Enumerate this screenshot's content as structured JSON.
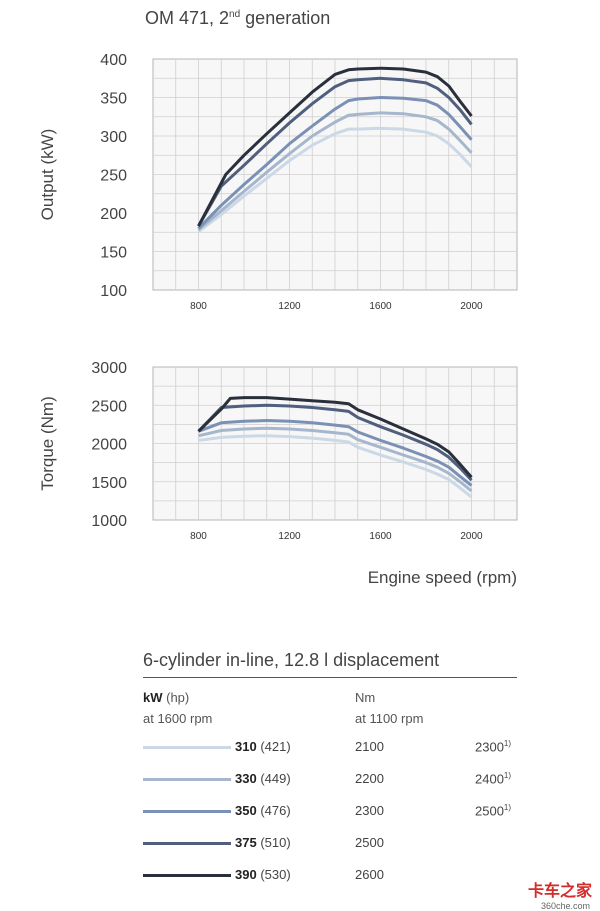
{
  "title": {
    "main": "OM 471, 2",
    "sup": "nd",
    "rest": " generation"
  },
  "chart_data": [
    {
      "type": "line",
      "ylabel": "Output (kW)",
      "ylim": [
        100,
        400
      ],
      "yticks": [
        100,
        150,
        200,
        250,
        300,
        350,
        400
      ],
      "xlim": [
        600,
        2200
      ],
      "xticks": [
        800,
        1200,
        1600,
        2000
      ],
      "grid": true,
      "series": [
        {
          "name": "390 (530)",
          "color": "#2a2f3c",
          "points": [
            [
              800,
              183
            ],
            [
              920,
              250
            ],
            [
              1000,
              275
            ],
            [
              1100,
              303
            ],
            [
              1200,
              330
            ],
            [
              1300,
              357
            ],
            [
              1400,
              380
            ],
            [
              1460,
              386
            ],
            [
              1500,
              387
            ],
            [
              1600,
              388
            ],
            [
              1700,
              387
            ],
            [
              1800,
              383
            ],
            [
              1850,
              377
            ],
            [
              1900,
              365
            ],
            [
              1950,
              345
            ],
            [
              2000,
              326
            ]
          ]
        },
        {
          "name": "375 (510)",
          "color": "#4f5f7d",
          "points": [
            [
              800,
              183
            ],
            [
              900,
              235
            ],
            [
              1000,
              262
            ],
            [
              1100,
              290
            ],
            [
              1200,
              317
            ],
            [
              1300,
              342
            ],
            [
              1400,
              364
            ],
            [
              1460,
              372
            ],
            [
              1500,
              373
            ],
            [
              1600,
              375
            ],
            [
              1700,
              373
            ],
            [
              1800,
              369
            ],
            [
              1850,
              362
            ],
            [
              1900,
              350
            ],
            [
              1950,
              334
            ],
            [
              2000,
              315
            ]
          ]
        },
        {
          "name": "350 (476)",
          "color": "#7a90b5",
          "points": [
            [
              800,
              180
            ],
            [
              900,
              210
            ],
            [
              1000,
              237
            ],
            [
              1100,
              263
            ],
            [
              1200,
              290
            ],
            [
              1300,
              313
            ],
            [
              1400,
              335
            ],
            [
              1460,
              346
            ],
            [
              1500,
              348
            ],
            [
              1600,
              350
            ],
            [
              1700,
              349
            ],
            [
              1800,
              346
            ],
            [
              1850,
              340
            ],
            [
              1900,
              328
            ],
            [
              1950,
              312
            ],
            [
              2000,
              295
            ]
          ]
        },
        {
          "name": "330 (449)",
          "color": "#a6b7cd",
          "points": [
            [
              800,
              178
            ],
            [
              900,
              203
            ],
            [
              1000,
              228
            ],
            [
              1100,
              253
            ],
            [
              1200,
              277
            ],
            [
              1300,
              300
            ],
            [
              1400,
              318
            ],
            [
              1460,
              327
            ],
            [
              1500,
              328
            ],
            [
              1600,
              330
            ],
            [
              1700,
              329
            ],
            [
              1800,
              325
            ],
            [
              1850,
              320
            ],
            [
              1900,
              309
            ],
            [
              1950,
              294
            ],
            [
              2000,
              278
            ]
          ]
        },
        {
          "name": "310 (421)",
          "color": "#cbd8e6",
          "points": [
            [
              800,
              176
            ],
            [
              900,
              198
            ],
            [
              1000,
              222
            ],
            [
              1100,
              245
            ],
            [
              1200,
              268
            ],
            [
              1300,
              288
            ],
            [
              1400,
              303
            ],
            [
              1460,
              309
            ],
            [
              1500,
              309
            ],
            [
              1600,
              310
            ],
            [
              1700,
              309
            ],
            [
              1800,
              305
            ],
            [
              1850,
              300
            ],
            [
              1900,
              290
            ],
            [
              1950,
              276
            ],
            [
              2000,
              260
            ]
          ]
        }
      ]
    },
    {
      "type": "line",
      "ylabel": "Torque (Nm)",
      "xlabel": "Engine speed (rpm)",
      "ylim": [
        1000,
        3000
      ],
      "yticks": [
        1000,
        1500,
        2000,
        2500,
        3000
      ],
      "xlim": [
        600,
        2200
      ],
      "xticks": [
        800,
        1200,
        1600,
        2000
      ],
      "grid": true,
      "series": [
        {
          "name": "390 (530)",
          "color": "#2a2f3c",
          "points": [
            [
              800,
              2160
            ],
            [
              900,
              2450
            ],
            [
              940,
              2590
            ],
            [
              1000,
              2600
            ],
            [
              1100,
              2600
            ],
            [
              1200,
              2580
            ],
            [
              1300,
              2560
            ],
            [
              1400,
              2540
            ],
            [
              1460,
              2520
            ],
            [
              1500,
              2440
            ],
            [
              1600,
              2320
            ],
            [
              1700,
              2190
            ],
            [
              1800,
              2060
            ],
            [
              1850,
              1990
            ],
            [
              1900,
              1890
            ],
            [
              1950,
              1730
            ],
            [
              2000,
              1560
            ]
          ]
        },
        {
          "name": "375 (510)",
          "color": "#4f5f7d",
          "points": [
            [
              800,
              2160
            ],
            [
              900,
              2470
            ],
            [
              1000,
              2490
            ],
            [
              1100,
              2500
            ],
            [
              1200,
              2490
            ],
            [
              1300,
              2470
            ],
            [
              1400,
              2440
            ],
            [
              1460,
              2420
            ],
            [
              1500,
              2340
            ],
            [
              1600,
              2220
            ],
            [
              1700,
              2110
            ],
            [
              1800,
              1990
            ],
            [
              1850,
              1920
            ],
            [
              1900,
              1820
            ],
            [
              1950,
              1680
            ],
            [
              2000,
              1520
            ]
          ]
        },
        {
          "name": "350 (476)",
          "color": "#7a90b5",
          "points": [
            [
              800,
              2160
            ],
            [
              900,
              2270
            ],
            [
              1000,
              2290
            ],
            [
              1100,
              2300
            ],
            [
              1200,
              2290
            ],
            [
              1300,
              2270
            ],
            [
              1400,
              2240
            ],
            [
              1460,
              2220
            ],
            [
              1500,
              2150
            ],
            [
              1600,
              2040
            ],
            [
              1700,
              1940
            ],
            [
              1800,
              1830
            ],
            [
              1850,
              1770
            ],
            [
              1900,
              1690
            ],
            [
              1950,
              1570
            ],
            [
              2000,
              1450
            ]
          ]
        },
        {
          "name": "330 (449)",
          "color": "#a6b7cd",
          "points": [
            [
              800,
              2100
            ],
            [
              900,
              2170
            ],
            [
              1000,
              2190
            ],
            [
              1100,
              2200
            ],
            [
              1200,
              2190
            ],
            [
              1300,
              2170
            ],
            [
              1400,
              2140
            ],
            [
              1460,
              2120
            ],
            [
              1500,
              2050
            ],
            [
              1600,
              1950
            ],
            [
              1700,
              1850
            ],
            [
              1800,
              1750
            ],
            [
              1850,
              1690
            ],
            [
              1900,
              1610
            ],
            [
              1950,
              1500
            ],
            [
              2000,
              1380
            ]
          ]
        },
        {
          "name": "310 (421)",
          "color": "#cbd8e6",
          "points": [
            [
              800,
              2040
            ],
            [
              900,
              2080
            ],
            [
              1000,
              2095
            ],
            [
              1100,
              2100
            ],
            [
              1200,
              2090
            ],
            [
              1300,
              2070
            ],
            [
              1400,
              2040
            ],
            [
              1460,
              2020
            ],
            [
              1500,
              1950
            ],
            [
              1600,
              1850
            ],
            [
              1700,
              1760
            ],
            [
              1800,
              1660
            ],
            [
              1850,
              1600
            ],
            [
              1900,
              1530
            ],
            [
              1950,
              1420
            ],
            [
              2000,
              1300
            ]
          ]
        }
      ]
    }
  ],
  "spec": {
    "title": "6-cylinder in-line, 12.8 l displacement",
    "hdr_kw_bold": "kW",
    "hdr_kw_rest": " (hp)",
    "hdr_kw_sub": "at 1600 rpm",
    "hdr_nm": "Nm",
    "hdr_nm_sub": "at 1100 rpm",
    "rows": [
      {
        "kw": "310",
        "hp": " (421)",
        "nm": "2100",
        "alt": "2300",
        "alt_sup": "1)",
        "color": "#cbd8e6"
      },
      {
        "kw": "330",
        "hp": " (449)",
        "nm": "2200",
        "alt": "2400",
        "alt_sup": "1)",
        "color": "#a6b7cd"
      },
      {
        "kw": "350",
        "hp": " (476)",
        "nm": "2300",
        "alt": "2500",
        "alt_sup": "1)",
        "color": "#7a90b5"
      },
      {
        "kw": "375",
        "hp": " (510)",
        "nm": "2500",
        "alt": "",
        "alt_sup": "",
        "color": "#4f5f7d"
      },
      {
        "kw": "390",
        "hp": " (530)",
        "nm": "2600",
        "alt": "",
        "alt_sup": "",
        "color": "#2a2f3c"
      }
    ]
  },
  "watermark": {
    "main": "卡车之家",
    "sub": "360che.com"
  }
}
